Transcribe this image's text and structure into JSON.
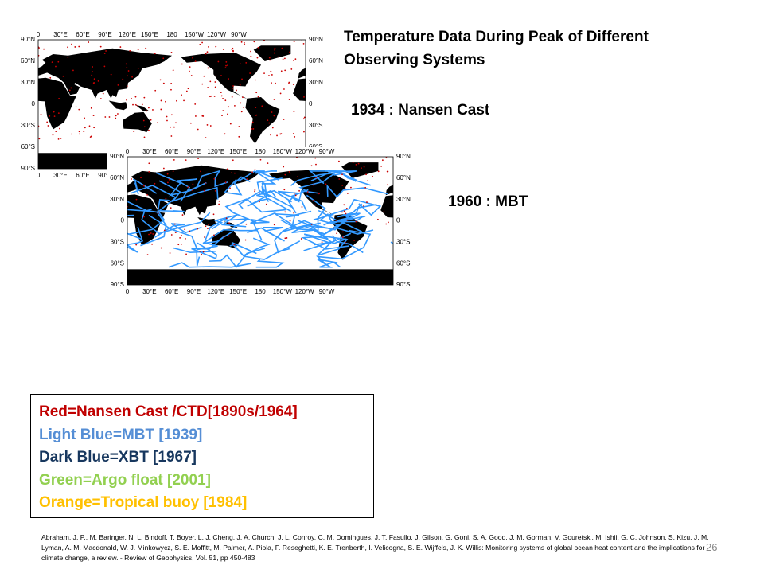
{
  "header": {
    "title": "Temperature Data During Peak of Different Observing Systems"
  },
  "captions": [
    "1934 : Nansen Cast",
    "1960 : MBT"
  ],
  "maps": [
    {
      "lon_labels": [
        "0",
        "30°E",
        "60°E",
        "90°E",
        "120°E",
        "150°E",
        "180",
        "150°W",
        "120°W",
        "90°W"
      ],
      "lat_labels": [
        "90°N",
        "60°N",
        "30°N",
        "0",
        "30°S",
        "60°S",
        "90°S"
      ]
    },
    {
      "lon_labels": [
        "0",
        "30°E",
        "60°E",
        "90°E",
        "120°E",
        "150°E",
        "180",
        "150°W",
        "120°W",
        "90°W"
      ],
      "lat_labels": [
        "90°N",
        "60°N",
        "30°N",
        "0",
        "30°S",
        "60°S",
        "90°S"
      ]
    }
  ],
  "legend": {
    "items": [
      {
        "text": "Red=Nansen Cast /CTD[1890s/1964]",
        "color": "#c00000"
      },
      {
        "text": "Light Blue=MBT [1939]",
        "color": "#558ed5"
      },
      {
        "text": "Dark Blue=XBT [1967]",
        "color": "#17375e"
      },
      {
        "text": "Green=Argo float [2001]",
        "color": "#92d050"
      },
      {
        "text": "Orange=Tropical buoy [1984]",
        "color": "#ffc000"
      }
    ]
  },
  "reference": "Abraham, J. P., M. Baringer, N. L. Bindoff, T. Boyer, L. J. Cheng, J. A. Church, J. L. Conroy, C. M. Domingues, J. T. Fasullo, J. Gilson, G. Goni, S. A. Good, J. M. Gorman, V. Gouretski, M. Ishii, G. C. Johnson, S. Kizu, J. M. Lyman, A. M. Macdonald, W. J. Minkowycz, S. E. Moffitt, M. Palmer, A. Piola, F. Reseghetti, K. E. Trenberth, I. Velicogna, S. E. Wijffels, J. K. Willis: Monitoring systems of global ocean heat content and the implications for climate change, a review. - Review of Geophysics, Vol. 51, pp 450-483",
  "page_number": "26"
}
